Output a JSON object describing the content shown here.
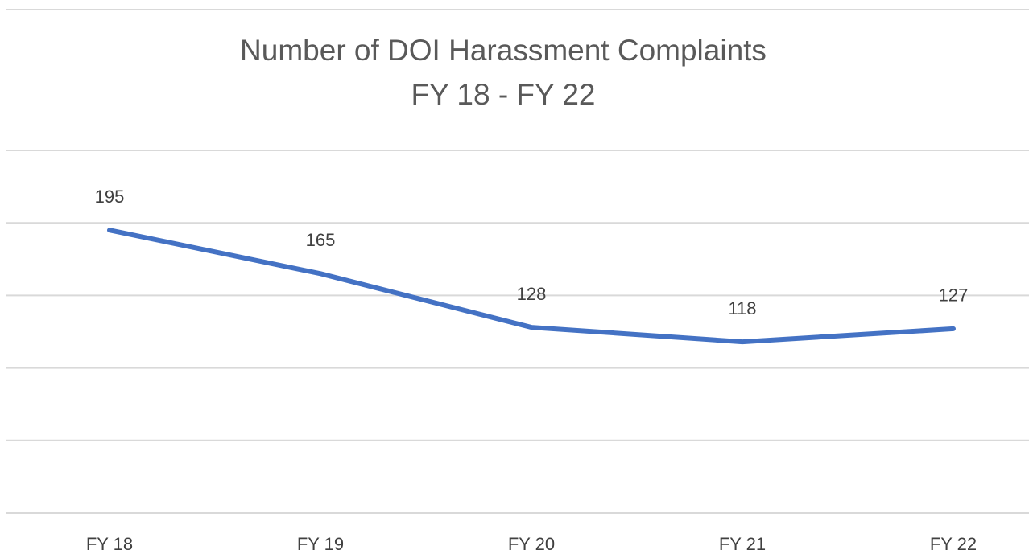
{
  "chart_data": {
    "type": "line",
    "title": "Number of DOI Harassment Complaints",
    "subtitle": "FY 18 - FY 22",
    "categories": [
      "FY 18",
      "FY 19",
      "FY 20",
      "FY 21",
      "FY 22"
    ],
    "values": [
      195,
      165,
      128,
      118,
      127
    ],
    "color": "#4472c4",
    "ylim": [
      0,
      250
    ],
    "yticks": [
      0,
      50,
      100,
      150,
      200,
      250
    ],
    "grid": true
  }
}
